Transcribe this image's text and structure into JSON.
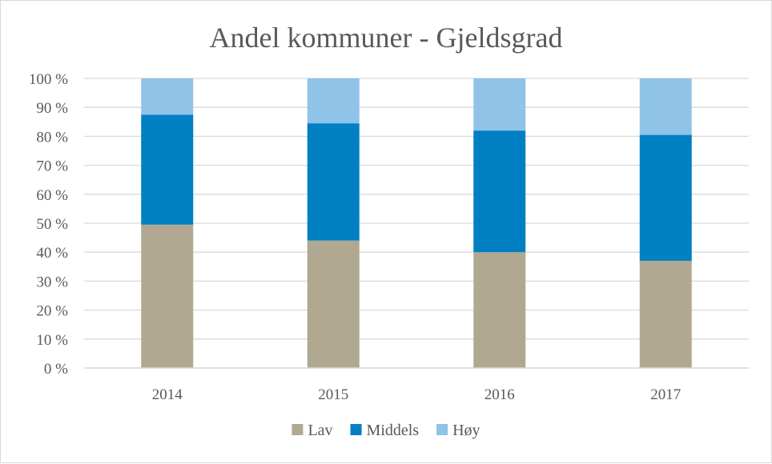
{
  "chart_data": {
    "type": "bar",
    "stacked": true,
    "title": "Andel kommuner - Gjeldsgrad",
    "xlabel": "",
    "ylabel": "",
    "ylim": [
      0,
      100
    ],
    "ytick_step": 10,
    "ytick_suffix": " %",
    "grid": true,
    "legend_position": "bottom",
    "categories": [
      "2014",
      "2015",
      "2016",
      "2017"
    ],
    "series": [
      {
        "name": "Lav",
        "color": "#b0a890",
        "values": [
          49.5,
          44,
          40,
          37
        ]
      },
      {
        "name": "Middels",
        "color": "#0080c3",
        "values": [
          38,
          40.5,
          42,
          43.5
        ]
      },
      {
        "name": "Høy",
        "color": "#8fc3e8",
        "values": [
          12.5,
          15.5,
          18,
          19.5
        ]
      }
    ]
  }
}
